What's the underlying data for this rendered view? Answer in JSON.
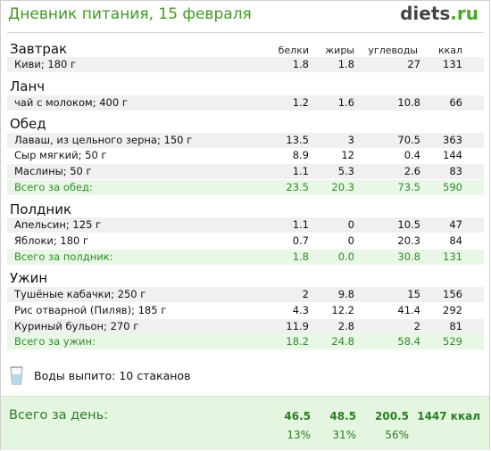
{
  "header": {
    "title": "Дневник питания, 15 февраля",
    "logo_main": "diets",
    "logo_tld": ".ru"
  },
  "columns": [
    "белки",
    "жиры",
    "углеводы",
    "ккал"
  ],
  "sections": [
    {
      "title": "Завтрак",
      "items": [
        {
          "name": "Киви; 180 г",
          "v": [
            "1.8",
            "1.8",
            "27",
            "131"
          ]
        }
      ]
    },
    {
      "title": "Ланч",
      "items": [
        {
          "name": "чай с молоком; 400 г",
          "v": [
            "1.2",
            "1.6",
            "10.8",
            "66"
          ]
        }
      ]
    },
    {
      "title": "Обед",
      "items": [
        {
          "name": "Лаваш, из цельного зерна; 150 г",
          "v": [
            "13.5",
            "3",
            "70.5",
            "363"
          ]
        },
        {
          "name": "Сыр мягкий; 50 г",
          "v": [
            "8.9",
            "12",
            "0.4",
            "144"
          ]
        },
        {
          "name": "Маслины; 50 г",
          "v": [
            "1.1",
            "5.3",
            "2.6",
            "83"
          ]
        }
      ],
      "total": {
        "name": "Всего за обед:",
        "v": [
          "23.5",
          "20.3",
          "73.5",
          "590"
        ]
      }
    },
    {
      "title": "Полдник",
      "items": [
        {
          "name": "Апельсин; 125 г",
          "v": [
            "1.1",
            "0",
            "10.5",
            "47"
          ]
        },
        {
          "name": "Яблоки; 180 г",
          "v": [
            "0.7",
            "0",
            "20.3",
            "84"
          ]
        }
      ],
      "total": {
        "name": "Всего за полдник:",
        "v": [
          "1.8",
          "0.0",
          "30.8",
          "131"
        ]
      }
    },
    {
      "title": "Ужин",
      "items": [
        {
          "name": "Тушёные кабачки; 250 г",
          "v": [
            "2",
            "9.8",
            "15",
            "156"
          ]
        },
        {
          "name": "Рис отварной (Пиляв); 185 г",
          "v": [
            "4.3",
            "12.2",
            "41.4",
            "292"
          ]
        },
        {
          "name": "Куриный бульон; 270 г",
          "v": [
            "11.9",
            "2.8",
            "2",
            "81"
          ]
        }
      ],
      "total": {
        "name": "Всего за ужин:",
        "v": [
          "18.2",
          "24.8",
          "58.4",
          "529"
        ]
      }
    }
  ],
  "water": {
    "text": "Воды выпито: 10 стаканов",
    "icon": "water-glass-icon"
  },
  "day_total": {
    "label": "Всего за день:",
    "v": [
      "46.5",
      "48.5",
      "200.5",
      "1447 ккал"
    ],
    "pct": [
      "13%",
      "31%",
      "56%"
    ]
  },
  "colors": {
    "title": "#3f9a23",
    "total_bg": "#e9f7e6",
    "total_text": "#2e8c2a",
    "day_bg": "#e4f6e0"
  }
}
